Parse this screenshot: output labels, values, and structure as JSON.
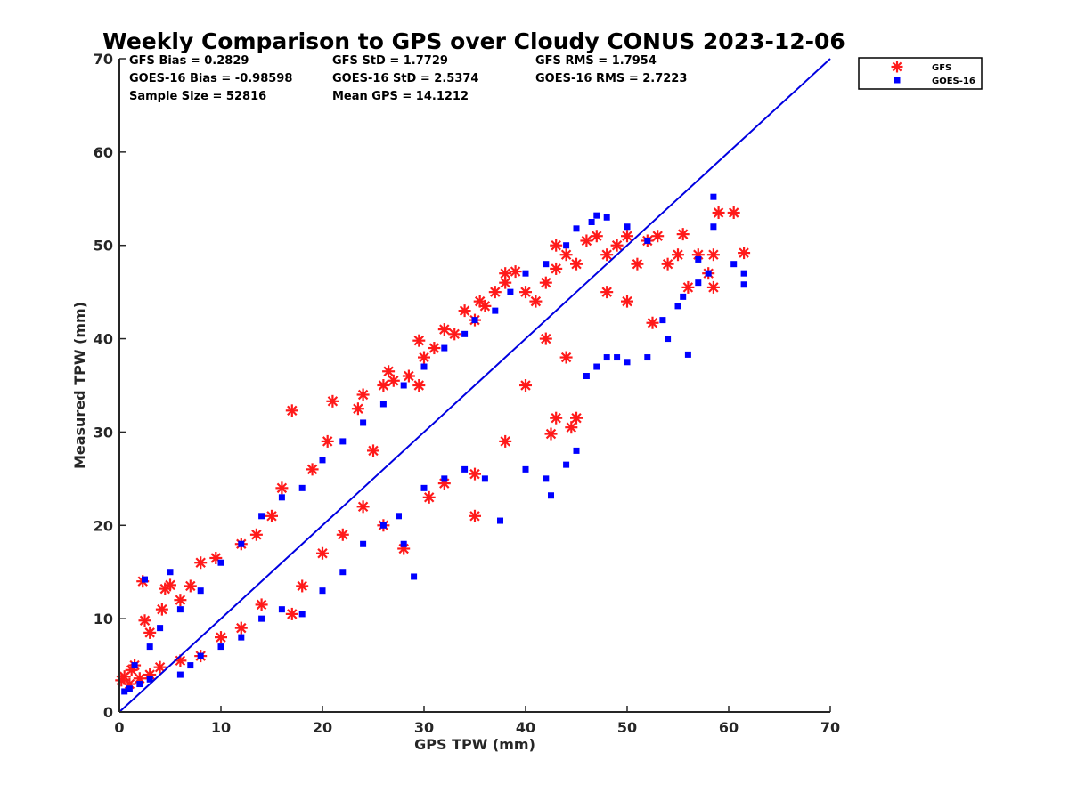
{
  "chart_data": {
    "type": "scatter",
    "title": "Weekly Comparison to GPS over Cloudy CONUS 2023-12-06",
    "xlabel": "GPS TPW (mm)",
    "ylabel": "Measured TPW (mm)",
    "xlim": [
      0,
      70
    ],
    "ylim": [
      0,
      70
    ],
    "xticks": [
      "0",
      "10",
      "20",
      "30",
      "40",
      "50",
      "60",
      "70"
    ],
    "yticks": [
      "0",
      "10",
      "20",
      "30",
      "40",
      "50",
      "60",
      "70"
    ],
    "grid": false,
    "legend_position": "outside top-right",
    "reference_line": {
      "x": [
        0,
        70
      ],
      "y": [
        0,
        70
      ],
      "color": "#0000e0"
    },
    "stats": [
      "GFS Bias = 0.2829",
      "GFS StD = 1.7729",
      "GFS RMS = 1.7954",
      "GOES-16 Bias = -0.98598",
      "GOES-16 StD = 2.5374",
      "GOES-16 RMS = 2.7223",
      "Sample Size = 52816",
      "Mean GPS = 14.1212"
    ],
    "series": [
      {
        "name": "GFS",
        "marker": "asterisk",
        "color": "#ff1a1a",
        "points": [
          [
            0.2,
            3.4
          ],
          [
            0.5,
            3.8
          ],
          [
            1.2,
            4.5
          ],
          [
            1.5,
            5.0
          ],
          [
            2.3,
            14.0
          ],
          [
            2.5,
            9.8
          ],
          [
            3.0,
            8.5
          ],
          [
            4.5,
            13.2
          ],
          [
            5.0,
            13.6
          ],
          [
            4.2,
            11.0
          ],
          [
            6.0,
            12.0
          ],
          [
            7.0,
            13.5
          ],
          [
            8.0,
            16.0
          ],
          [
            9.5,
            16.5
          ],
          [
            12.0,
            18.0
          ],
          [
            13.5,
            19.0
          ],
          [
            15.0,
            21.0
          ],
          [
            16.0,
            24.0
          ],
          [
            17.0,
            32.3
          ],
          [
            19.0,
            26.0
          ],
          [
            20.5,
            29.0
          ],
          [
            21.0,
            33.3
          ],
          [
            23.5,
            32.5
          ],
          [
            24.0,
            34.0
          ],
          [
            25.0,
            28.0
          ],
          [
            26.0,
            35.0
          ],
          [
            26.5,
            36.5
          ],
          [
            27.0,
            35.5
          ],
          [
            28.5,
            36.0
          ],
          [
            29.5,
            35.0
          ],
          [
            29.5,
            39.8
          ],
          [
            30.0,
            38.0
          ],
          [
            31.0,
            39.0
          ],
          [
            32.0,
            41.0
          ],
          [
            33.0,
            40.5
          ],
          [
            34.0,
            43.0
          ],
          [
            35.0,
            42.0
          ],
          [
            35.5,
            44.0
          ],
          [
            36.0,
            43.5
          ],
          [
            37.0,
            45.0
          ],
          [
            38.0,
            46.0
          ],
          [
            38.0,
            47.0
          ],
          [
            39.0,
            47.2
          ],
          [
            40.0,
            45.0
          ],
          [
            41.0,
            44.0
          ],
          [
            42.0,
            46.0
          ],
          [
            43.0,
            47.5
          ],
          [
            43.0,
            50.0
          ],
          [
            44.0,
            49.0
          ],
          [
            45.0,
            48.0
          ],
          [
            46.0,
            50.5
          ],
          [
            47.0,
            51.0
          ],
          [
            48.0,
            49.0
          ],
          [
            49.0,
            50.0
          ],
          [
            50.0,
            51.0
          ],
          [
            51.0,
            48.0
          ],
          [
            52.0,
            50.5
          ],
          [
            53.0,
            51.0
          ],
          [
            54.0,
            48.0
          ],
          [
            55.0,
            49.0
          ],
          [
            55.5,
            51.2
          ],
          [
            56.0,
            45.5
          ],
          [
            57.0,
            49.0
          ],
          [
            58.0,
            47.0
          ],
          [
            58.5,
            45.5
          ],
          [
            58.5,
            49.0
          ],
          [
            59.0,
            53.5
          ],
          [
            60.5,
            53.5
          ],
          [
            61.5,
            49.2
          ],
          [
            48.0,
            45.0
          ],
          [
            50.0,
            44.0
          ],
          [
            52.5,
            41.7
          ],
          [
            44.0,
            38.0
          ],
          [
            42.0,
            40.0
          ],
          [
            40.0,
            35.0
          ],
          [
            43.0,
            31.5
          ],
          [
            42.5,
            29.8
          ],
          [
            44.5,
            30.5
          ],
          [
            45.0,
            31.5
          ],
          [
            38.0,
            29.0
          ],
          [
            35.0,
            21.0
          ],
          [
            35.0,
            25.5
          ],
          [
            32.0,
            24.5
          ],
          [
            30.5,
            23.0
          ],
          [
            28.0,
            17.5
          ],
          [
            26.0,
            20.0
          ],
          [
            24.0,
            22.0
          ],
          [
            22.0,
            19.0
          ],
          [
            20.0,
            17.0
          ],
          [
            18.0,
            13.5
          ],
          [
            17.0,
            10.5
          ],
          [
            14.0,
            11.5
          ],
          [
            12.0,
            9.0
          ],
          [
            10.0,
            8.0
          ],
          [
            8.0,
            6.0
          ],
          [
            6.0,
            5.5
          ],
          [
            4.0,
            4.8
          ],
          [
            3.0,
            4.0
          ],
          [
            1.0,
            3.0
          ],
          [
            2.0,
            3.6
          ]
        ]
      },
      {
        "name": "GOES-16",
        "marker": "square",
        "color": "#0000ff",
        "points": [
          [
            0.5,
            2.2
          ],
          [
            1.0,
            2.5
          ],
          [
            2.0,
            3.0
          ],
          [
            2.5,
            14.2
          ],
          [
            3.0,
            3.5
          ],
          [
            5.0,
            15.0
          ],
          [
            6.0,
            4.0
          ],
          [
            7.0,
            5.0
          ],
          [
            8.0,
            6.0
          ],
          [
            10.0,
            7.0
          ],
          [
            12.0,
            8.0
          ],
          [
            14.0,
            10.0
          ],
          [
            16.0,
            11.0
          ],
          [
            18.0,
            10.5
          ],
          [
            20.0,
            13.0
          ],
          [
            22.0,
            15.0
          ],
          [
            24.0,
            18.0
          ],
          [
            26.0,
            20.0
          ],
          [
            27.5,
            21.0
          ],
          [
            28.0,
            18.0
          ],
          [
            29.0,
            14.5
          ],
          [
            30.0,
            24.0
          ],
          [
            32.0,
            25.0
          ],
          [
            34.0,
            26.0
          ],
          [
            36.0,
            25.0
          ],
          [
            37.5,
            20.5
          ],
          [
            40.0,
            26.0
          ],
          [
            42.0,
            25.0
          ],
          [
            42.5,
            23.2
          ],
          [
            44.0,
            26.5
          ],
          [
            45.0,
            28.0
          ],
          [
            46.0,
            36.0
          ],
          [
            47.0,
            37.0
          ],
          [
            48.0,
            38.0
          ],
          [
            49.0,
            38.0
          ],
          [
            50.0,
            37.5
          ],
          [
            52.0,
            38.0
          ],
          [
            54.0,
            40.0
          ],
          [
            55.0,
            43.5
          ],
          [
            56.0,
            38.3
          ],
          [
            57.0,
            46.0
          ],
          [
            58.0,
            47.0
          ],
          [
            58.5,
            55.2
          ],
          [
            58.5,
            52.0
          ],
          [
            61.5,
            47.0
          ],
          [
            61.5,
            45.8
          ],
          [
            60.5,
            48.0
          ],
          [
            57.0,
            48.5
          ],
          [
            55.5,
            44.5
          ],
          [
            53.5,
            42.0
          ],
          [
            52.0,
            50.5
          ],
          [
            50.0,
            52.0
          ],
          [
            48.0,
            53.0
          ],
          [
            47.0,
            53.2
          ],
          [
            46.5,
            52.5
          ],
          [
            45.0,
            51.8
          ],
          [
            44.0,
            50.0
          ],
          [
            42.0,
            48.0
          ],
          [
            40.0,
            47.0
          ],
          [
            38.5,
            45.0
          ],
          [
            37.0,
            43.0
          ],
          [
            35.0,
            42.0
          ],
          [
            34.0,
            40.5
          ],
          [
            32.0,
            39.0
          ],
          [
            30.0,
            37.0
          ],
          [
            28.0,
            35.0
          ],
          [
            26.0,
            33.0
          ],
          [
            24.0,
            31.0
          ],
          [
            22.0,
            29.0
          ],
          [
            20.0,
            27.0
          ],
          [
            18.0,
            24.0
          ],
          [
            16.0,
            23.0
          ],
          [
            14.0,
            21.0
          ],
          [
            12.0,
            18.0
          ],
          [
            10.0,
            16.0
          ],
          [
            8.0,
            13.0
          ],
          [
            6.0,
            11.0
          ],
          [
            4.0,
            9.0
          ],
          [
            3.0,
            7.0
          ],
          [
            1.5,
            5.0
          ]
        ]
      }
    ]
  }
}
